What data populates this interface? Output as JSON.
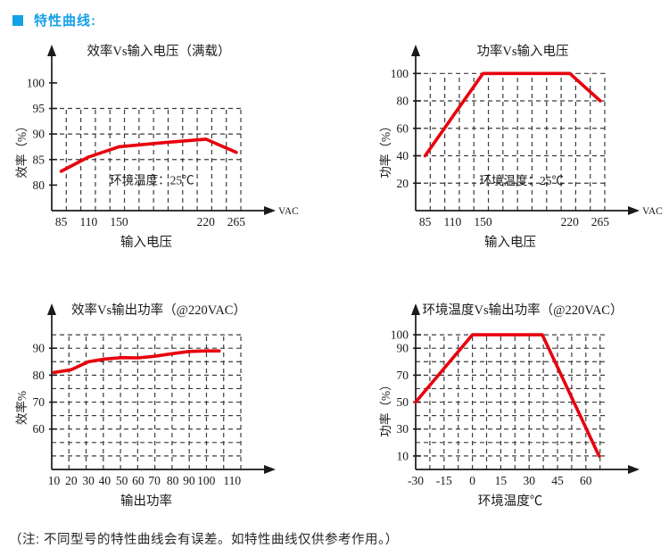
{
  "header": {
    "title": "特性曲线:",
    "color": "#14a0e8"
  },
  "note": "（注: 不同型号的特性曲线会有误差。如特性曲线仅供参考作用。）",
  "colors": {
    "curve": "#e8000d",
    "axis": "#1a1a1a",
    "grid": "#3c3c3c",
    "text": "#1a1a1a"
  },
  "chart_data": [
    {
      "id": "efficiency-vs-input-voltage",
      "type": "line",
      "title": "效率Vs输入电压（满载）",
      "xlabel": "输入电压",
      "ylabel": "效率（%）",
      "x_unit": "VAC",
      "annotation": "环境温度：25℃",
      "x_ticks": [
        85,
        110,
        150,
        220,
        265
      ],
      "y_ticks": [
        80,
        85,
        90,
        95,
        100
      ],
      "xlim": [
        80,
        272
      ],
      "ylim": [
        75,
        104
      ],
      "hgrid": [
        85,
        90,
        95
      ],
      "grid_top": 95,
      "points": [
        [
          85,
          82.7
        ],
        [
          110,
          85.5
        ],
        [
          150,
          87.5
        ],
        [
          185,
          88.3
        ],
        [
          220,
          89
        ],
        [
          265,
          86.4
        ]
      ]
    },
    {
      "id": "power-vs-input-voltage",
      "type": "line",
      "title": "功率Vs输入电压",
      "xlabel": "输入电压",
      "ylabel": "功率（%）",
      "x_unit": "VAC",
      "annotation": "环境温度：25℃",
      "x_ticks": [
        85,
        110,
        150,
        220,
        265
      ],
      "y_ticks": [
        20,
        40,
        60,
        80,
        100
      ],
      "xlim": [
        80,
        272
      ],
      "ylim": [
        0,
        108
      ],
      "hgrid": [
        20,
        40,
        60,
        80,
        100
      ],
      "grid_top": 100,
      "points": [
        [
          85,
          40
        ],
        [
          150,
          100
        ],
        [
          220,
          100
        ],
        [
          265,
          80
        ]
      ]
    },
    {
      "id": "efficiency-vs-output-power",
      "type": "line",
      "title": "效率Vs输出功率（@220VAC）",
      "xlabel": "输出功率",
      "ylabel": "效率%",
      "x_unit": "",
      "annotation": "",
      "x_ticks": [
        10,
        20,
        30,
        40,
        50,
        60,
        70,
        80,
        90,
        100,
        110
      ],
      "y_ticks": [
        60,
        70,
        80,
        90
      ],
      "xlim": [
        10,
        120
      ],
      "ylim": [
        45,
        100
      ],
      "hgrid": [
        50,
        55,
        60,
        65,
        70,
        75,
        80,
        85,
        90,
        95
      ],
      "grid_top": 95,
      "points": [
        [
          10,
          81
        ],
        [
          20,
          82
        ],
        [
          30,
          85
        ],
        [
          40,
          86
        ],
        [
          50,
          86.5
        ],
        [
          60,
          86.4
        ],
        [
          70,
          87
        ],
        [
          80,
          88
        ],
        [
          90,
          88.8
        ],
        [
          100,
          89
        ],
        [
          105,
          89
        ]
      ]
    },
    {
      "id": "ambient-temp-vs-output-power",
      "type": "line",
      "title": "环境温度Vs输出功率（@220VAC）",
      "xlabel": "环境温度℃",
      "ylabel": "功率（%）",
      "x_unit": "",
      "annotation": "",
      "x_ticks": [
        -30,
        -15,
        0,
        15,
        30,
        45,
        60
      ],
      "y_ticks": [
        10,
        30,
        50,
        70,
        90,
        100
      ],
      "xlim": [
        -30,
        70
      ],
      "ylim": [
        0,
        110
      ],
      "hgrid": [
        10,
        20,
        30,
        40,
        50,
        60,
        70,
        80,
        90,
        100
      ],
      "grid_top": 100,
      "points": [
        [
          -30,
          50
        ],
        [
          0,
          100
        ],
        [
          37,
          100
        ],
        [
          67,
          10
        ]
      ]
    }
  ]
}
